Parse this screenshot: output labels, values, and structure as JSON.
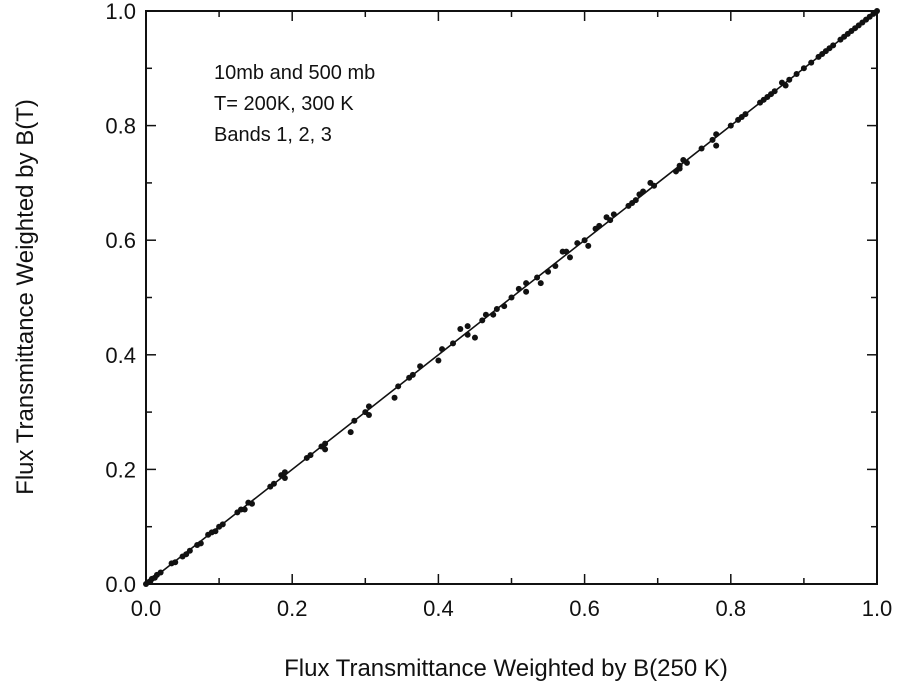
{
  "chart_data": {
    "type": "scatter",
    "title": "",
    "xlabel": "Flux Transmittance Weighted by B(250 K)",
    "ylabel": "Flux Transmittance Weighted by B(T)",
    "xlim": [
      0.0,
      1.0
    ],
    "ylim": [
      0.0,
      1.0
    ],
    "x_ticks": [
      "0.0",
      "0.2",
      "0.4",
      "0.6",
      "0.8",
      "1.0"
    ],
    "y_ticks": [
      "0.0",
      "0.2",
      "0.4",
      "0.6",
      "0.8",
      "1.0"
    ],
    "grid": false,
    "legend": "none",
    "annotations": [
      "10mb and 500 mb",
      "T= 200K, 300 K",
      "Bands 1, 2, 3"
    ],
    "reference_line": {
      "x": [
        0.0,
        1.0
      ],
      "y": [
        0.0,
        1.0
      ]
    },
    "series": [
      {
        "marker": "filled-circle",
        "color": "#111111",
        "points": [
          [
            0.0,
            0.0
          ],
          [
            0.003,
            0.003
          ],
          [
            0.006,
            0.005
          ],
          [
            0.008,
            0.009
          ],
          [
            0.012,
            0.011
          ],
          [
            0.015,
            0.016
          ],
          [
            0.02,
            0.02
          ],
          [
            0.035,
            0.036
          ],
          [
            0.04,
            0.038
          ],
          [
            0.05,
            0.048
          ],
          [
            0.055,
            0.052
          ],
          [
            0.06,
            0.058
          ],
          [
            0.07,
            0.068
          ],
          [
            0.075,
            0.071
          ],
          [
            0.085,
            0.086
          ],
          [
            0.09,
            0.09
          ],
          [
            0.095,
            0.092
          ],
          [
            0.1,
            0.1
          ],
          [
            0.105,
            0.104
          ],
          [
            0.125,
            0.125
          ],
          [
            0.13,
            0.13
          ],
          [
            0.135,
            0.13
          ],
          [
            0.14,
            0.142
          ],
          [
            0.145,
            0.14
          ],
          [
            0.17,
            0.17
          ],
          [
            0.175,
            0.175
          ],
          [
            0.185,
            0.19
          ],
          [
            0.19,
            0.185
          ],
          [
            0.19,
            0.195
          ],
          [
            0.22,
            0.22
          ],
          [
            0.225,
            0.225
          ],
          [
            0.24,
            0.24
          ],
          [
            0.245,
            0.245
          ],
          [
            0.245,
            0.235
          ],
          [
            0.28,
            0.265
          ],
          [
            0.285,
            0.285
          ],
          [
            0.3,
            0.3
          ],
          [
            0.305,
            0.31
          ],
          [
            0.305,
            0.295
          ],
          [
            0.34,
            0.325
          ],
          [
            0.345,
            0.345
          ],
          [
            0.36,
            0.36
          ],
          [
            0.365,
            0.365
          ],
          [
            0.375,
            0.38
          ],
          [
            0.4,
            0.39
          ],
          [
            0.405,
            0.41
          ],
          [
            0.42,
            0.42
          ],
          [
            0.43,
            0.445
          ],
          [
            0.44,
            0.45
          ],
          [
            0.44,
            0.435
          ],
          [
            0.45,
            0.43
          ],
          [
            0.46,
            0.46
          ],
          [
            0.465,
            0.47
          ],
          [
            0.475,
            0.47
          ],
          [
            0.48,
            0.48
          ],
          [
            0.49,
            0.485
          ],
          [
            0.5,
            0.5
          ],
          [
            0.51,
            0.515
          ],
          [
            0.52,
            0.51
          ],
          [
            0.52,
            0.525
          ],
          [
            0.535,
            0.535
          ],
          [
            0.54,
            0.525
          ],
          [
            0.55,
            0.545
          ],
          [
            0.56,
            0.555
          ],
          [
            0.57,
            0.58
          ],
          [
            0.575,
            0.58
          ],
          [
            0.58,
            0.57
          ],
          [
            0.59,
            0.595
          ],
          [
            0.6,
            0.6
          ],
          [
            0.605,
            0.59
          ],
          [
            0.615,
            0.62
          ],
          [
            0.62,
            0.625
          ],
          [
            0.63,
            0.64
          ],
          [
            0.635,
            0.635
          ],
          [
            0.64,
            0.645
          ],
          [
            0.66,
            0.66
          ],
          [
            0.665,
            0.665
          ],
          [
            0.67,
            0.67
          ],
          [
            0.675,
            0.68
          ],
          [
            0.68,
            0.685
          ],
          [
            0.69,
            0.7
          ],
          [
            0.695,
            0.695
          ],
          [
            0.725,
            0.72
          ],
          [
            0.73,
            0.73
          ],
          [
            0.73,
            0.725
          ],
          [
            0.735,
            0.74
          ],
          [
            0.74,
            0.735
          ],
          [
            0.76,
            0.76
          ],
          [
            0.775,
            0.775
          ],
          [
            0.78,
            0.785
          ],
          [
            0.78,
            0.765
          ],
          [
            0.8,
            0.8
          ],
          [
            0.81,
            0.81
          ],
          [
            0.815,
            0.815
          ],
          [
            0.82,
            0.82
          ],
          [
            0.84,
            0.84
          ],
          [
            0.845,
            0.845
          ],
          [
            0.85,
            0.85
          ],
          [
            0.855,
            0.855
          ],
          [
            0.86,
            0.86
          ],
          [
            0.87,
            0.875
          ],
          [
            0.875,
            0.87
          ],
          [
            0.88,
            0.88
          ],
          [
            0.89,
            0.89
          ],
          [
            0.9,
            0.9
          ],
          [
            0.91,
            0.91
          ],
          [
            0.92,
            0.92
          ],
          [
            0.925,
            0.925
          ],
          [
            0.93,
            0.93
          ],
          [
            0.935,
            0.935
          ],
          [
            0.94,
            0.94
          ],
          [
            0.95,
            0.95
          ],
          [
            0.955,
            0.955
          ],
          [
            0.96,
            0.96
          ],
          [
            0.965,
            0.965
          ],
          [
            0.97,
            0.97
          ],
          [
            0.975,
            0.975
          ],
          [
            0.98,
            0.98
          ],
          [
            0.985,
            0.985
          ],
          [
            0.99,
            0.99
          ],
          [
            0.995,
            0.995
          ],
          [
            1.0,
            1.0
          ]
        ]
      }
    ]
  }
}
